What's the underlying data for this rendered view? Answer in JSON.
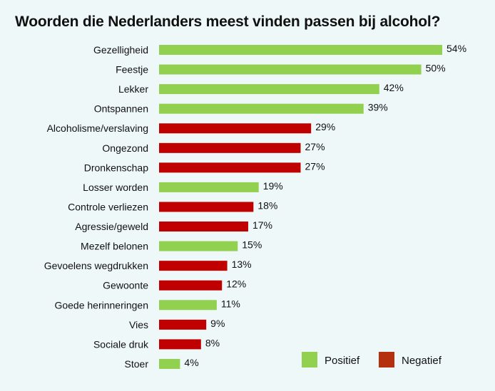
{
  "chart_data": {
    "type": "bar",
    "orientation": "horizontal",
    "title": "Woorden die Nederlanders meest vinden passen bij alcohol?",
    "categories": [
      "Gezelligheid",
      "Feestje",
      "Lekker",
      "Ontspannen",
      "Alcoholisme/verslaving",
      "Ongezond",
      "Dronkenschap",
      "Losser worden",
      "Controle verliezen",
      "Agressie/geweld",
      "Mezelf belonen",
      "Gevoelens wegdrukken",
      "Gewoonte",
      "Goede herinneringen",
      "Vies",
      "Sociale druk",
      "Stoer"
    ],
    "values": [
      54,
      50,
      42,
      39,
      29,
      27,
      27,
      19,
      18,
      17,
      15,
      13,
      12,
      11,
      9,
      8,
      4
    ],
    "value_labels": [
      "54%",
      "50%",
      "42%",
      "39%",
      "29%",
      "27%",
      "27%",
      "19%",
      "18%",
      "17%",
      "15%",
      "13%",
      "12%",
      "11%",
      "9%",
      "8%",
      "4%"
    ],
    "groups": [
      "Positief",
      "Positief",
      "Positief",
      "Positief",
      "Negatief",
      "Negatief",
      "Negatief",
      "Positief",
      "Negatief",
      "Negatief",
      "Positief",
      "Negatief",
      "Negatief",
      "Positief",
      "Negatief",
      "Negatief",
      "Positief"
    ],
    "legend": [
      {
        "name": "Positief",
        "color": "#92d050"
      },
      {
        "name": "Negatief",
        "color": "#c00000"
      }
    ],
    "legend_placement": "bottom-right",
    "unit": "%",
    "grid": false
  }
}
